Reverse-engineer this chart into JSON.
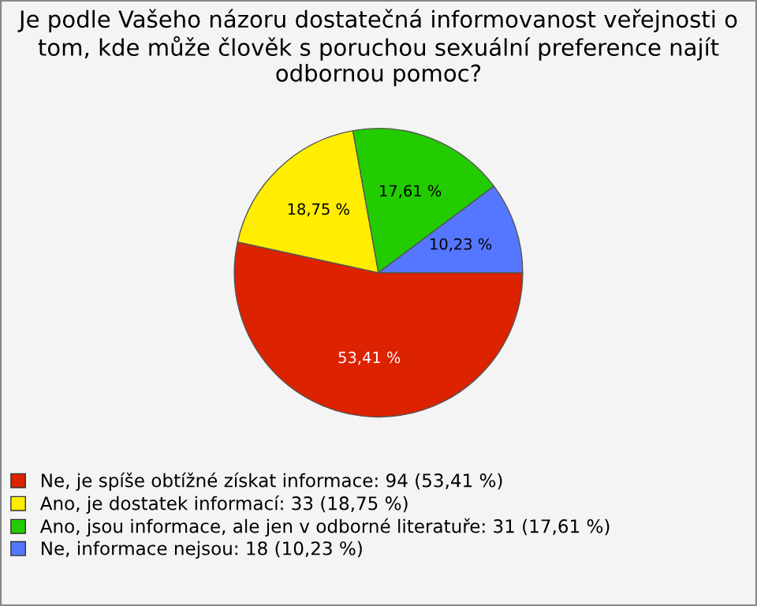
{
  "chart_data": {
    "type": "pie",
    "title": "Je podle Vašeho názoru dostatečná informovanost veřejnosti o tom, kde může člověk s poruchou sexuální preference najít odbornou pomoc?",
    "categories": [
      "Ne, je spíše obtížné získat informace: 94 (53,41 %)",
      "Ano, je dostatek informací: 33 (18,75 %)",
      "Ano, jsou informace, ale jen v odborné literatuře: 31 (17,61 %)",
      "Ne, informace nejsou: 18 (10,23 %)"
    ],
    "values": [
      53.41,
      18.75,
      17.61,
      10.23
    ],
    "value_labels": [
      "53,41 %",
      "18,75 %",
      "17,61 %",
      "10,23 %"
    ],
    "colors": [
      "#dd2200",
      "#ffee00",
      "#22cc00",
      "#5577ff"
    ],
    "legend": "bottom"
  }
}
